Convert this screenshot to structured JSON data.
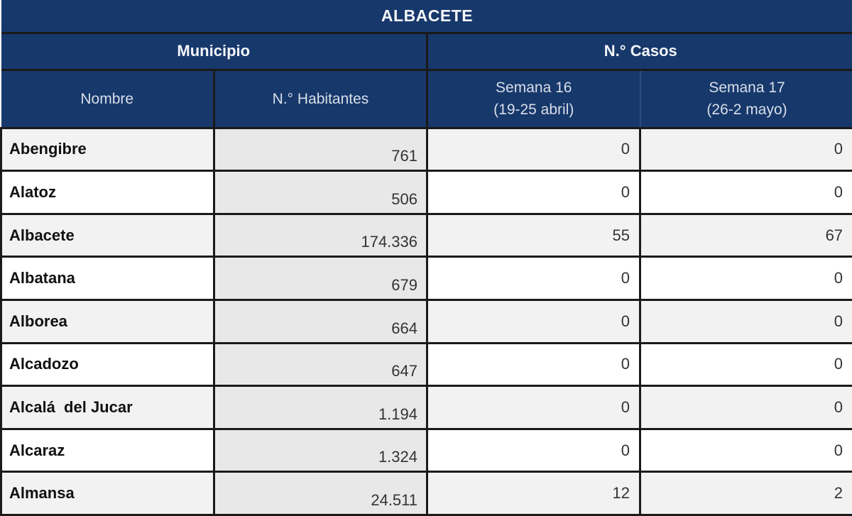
{
  "table": {
    "title": "ALBACETE",
    "group_headers": {
      "municipio": "Municipio",
      "casos": "N.° Casos"
    },
    "columns": {
      "nombre": "Nombre",
      "habitantes": "N.° Habitantes",
      "semana16_line1": "Semana 16",
      "semana16_line2": "(19-25 abril)",
      "semana17_line1": "Semana 17",
      "semana17_line2": "(26-2 mayo)"
    },
    "rows": [
      {
        "nombre": "Abengibre",
        "habitantes": "761",
        "semana16": "0",
        "semana17": "0"
      },
      {
        "nombre": "Alatoz",
        "habitantes": "506",
        "semana16": "0",
        "semana17": "0"
      },
      {
        "nombre": "Albacete",
        "habitantes": "174.336",
        "semana16": "55",
        "semana17": "67"
      },
      {
        "nombre": "Albatana",
        "habitantes": "679",
        "semana16": "0",
        "semana17": "0"
      },
      {
        "nombre": "Alborea",
        "habitantes": "664",
        "semana16": "0",
        "semana17": "0"
      },
      {
        "nombre": "Alcadozo",
        "habitantes": "647",
        "semana16": "0",
        "semana17": "0"
      },
      {
        "nombre": "Alcalá  del Jucar",
        "habitantes": "1.194",
        "semana16": "0",
        "semana17": "0"
      },
      {
        "nombre": "Alcaraz",
        "habitantes": "1.324",
        "semana16": "0",
        "semana17": "0"
      },
      {
        "nombre": "Almansa",
        "habitantes": "24.511",
        "semana16": "12",
        "semana17": "2"
      }
    ]
  },
  "colors": {
    "header_navy": "#17386b",
    "border_black": "#1a1a1a",
    "row_shaded": "#f2f2f2",
    "row_plain": "#ffffff",
    "habitantes_column": "#e8e8e8",
    "header_text": "#f4f6f9",
    "subheader_text": "#d9dfe9",
    "number_text": "#333333",
    "faint_divider": "#2e4d7e"
  }
}
